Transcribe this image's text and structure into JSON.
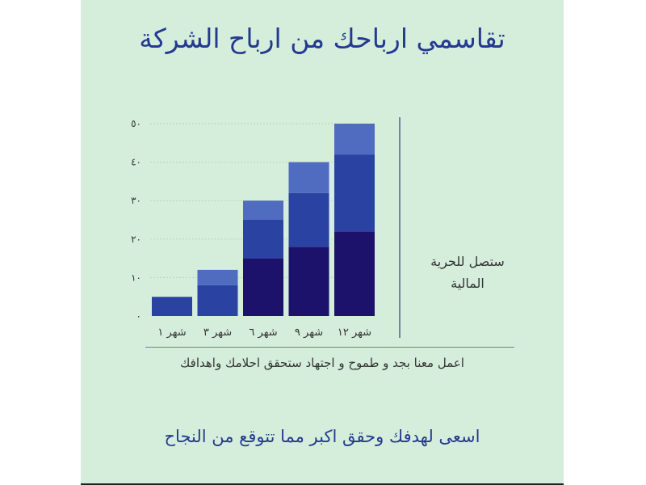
{
  "title": "تقاسمي ارباحك من ارباح الشركة",
  "side_text": "ستصل للحرية المالية",
  "tagline": "اعمل معنا بجد و طموح و اجتهاد ستحقق احلامك واهدافك",
  "footer": "اسعى لهدفك وحقق اكبر مما تتوقع من النجاح",
  "colors": {
    "background": "#d5eedb",
    "title": "#253a8f",
    "series": [
      "#1c126b",
      "#2a43a3",
      "#4f6cc0"
    ]
  },
  "chart_data": {
    "type": "bar",
    "stacked": true,
    "categories": [
      "شهر ١",
      "شهر ٣",
      "شهر ٦",
      "شهر ٩",
      "شهر ١٢"
    ],
    "series": [
      {
        "values": [
          0,
          0,
          15,
          18,
          22
        ]
      },
      {
        "values": [
          5,
          8,
          10,
          14,
          20
        ]
      },
      {
        "values": [
          0,
          4,
          5,
          8,
          8
        ]
      }
    ],
    "yticks": [
      "٠",
      "١٠",
      "٢٠",
      "٣٠",
      "٤٠",
      "٥٠"
    ],
    "ylim": [
      0,
      50
    ],
    "grid": true,
    "legend": "none"
  }
}
